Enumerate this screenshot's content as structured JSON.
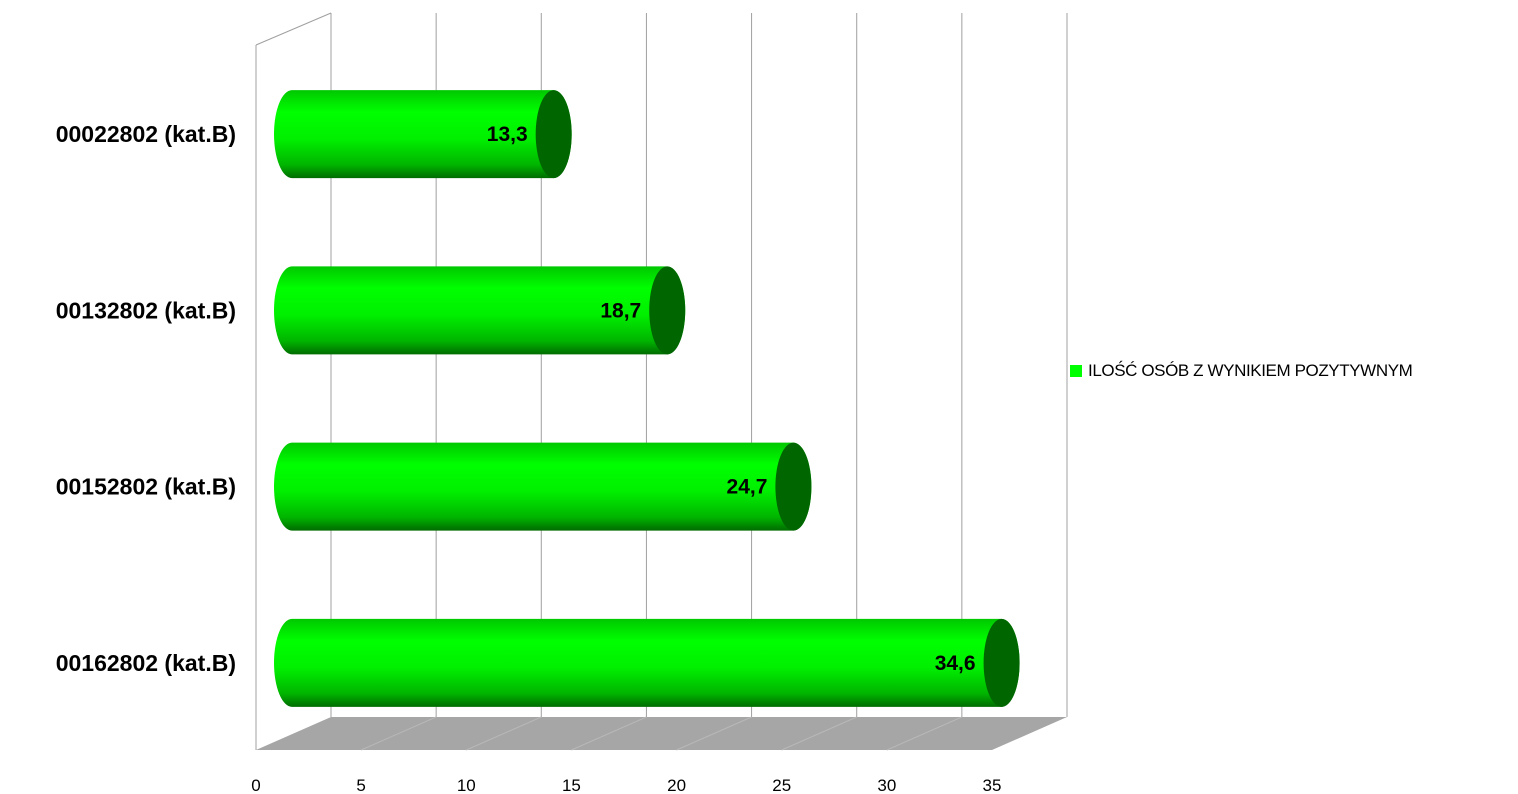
{
  "chart_data": {
    "type": "bar",
    "orientation": "horizontal",
    "style": "3d-cylinder",
    "categories": [
      "00022802 (kat.B)",
      "00132802 (kat.B)",
      "00152802 (kat.B)",
      "00162802 (kat.B)"
    ],
    "series": [
      {
        "name": "ILOŚĆ OSÓB Z WYNIKIEM POZYTYWNYM",
        "values": [
          13.3,
          18.7,
          24.7,
          34.6
        ],
        "labels": [
          "13,3",
          "18,7",
          "24,7",
          "34,6"
        ]
      }
    ],
    "xlim": [
      0,
      35
    ],
    "xticks": [
      "0",
      "5",
      "10",
      "15",
      "20",
      "25",
      "30",
      "35"
    ],
    "grid": true,
    "legend_position": "right",
    "colors": {
      "bar": "#00ff00",
      "bar_end": "#006600",
      "floor": "#a6a6a6",
      "grid": "#a0a0a0"
    }
  }
}
